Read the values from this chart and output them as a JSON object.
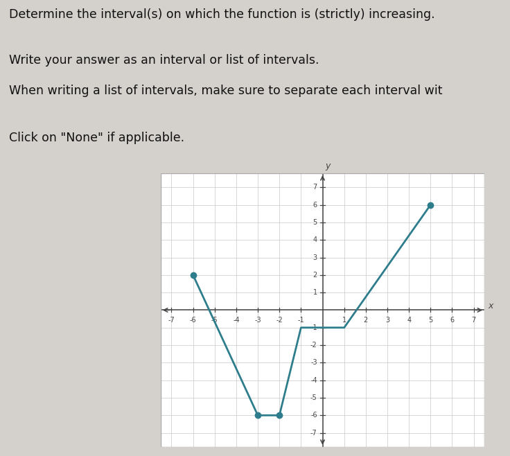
{
  "title_lines": [
    "Determine the interval(s) on which the function is (strictly) increasing.",
    "Write your answer as an interval or list of intervals.",
    "When writing a list of intervals, make sure to separate each interval wit",
    "Click on \"None\" if applicable."
  ],
  "graph_points": [
    [
      -6,
      2
    ],
    [
      -3,
      -6
    ],
    [
      -2,
      -6
    ],
    [
      -1,
      -1
    ],
    [
      1,
      -1
    ],
    [
      5,
      6
    ]
  ],
  "closed_dots": [
    [
      -6,
      2
    ],
    [
      -3,
      -6
    ],
    [
      -2,
      -6
    ],
    [
      5,
      6
    ]
  ],
  "xlim": [
    -7.5,
    7.5
  ],
  "ylim": [
    -7.8,
    7.8
  ],
  "xticks": [
    -7,
    -6,
    -5,
    -4,
    -3,
    -2,
    -1,
    1,
    2,
    3,
    4,
    5,
    6,
    7
  ],
  "yticks": [
    -7,
    -6,
    -5,
    -4,
    -3,
    -2,
    -1,
    1,
    2,
    3,
    4,
    5,
    6,
    7
  ],
  "line_color": "#2e7d8c",
  "dot_color": "#2e7d8c",
  "bg_color": "#ffffff",
  "grid_color": "#c8c8c8",
  "axis_color": "#444444",
  "text_color": "#111111",
  "fig_bg": "#d4d0cc",
  "graph_bg": "#e8e4e0"
}
